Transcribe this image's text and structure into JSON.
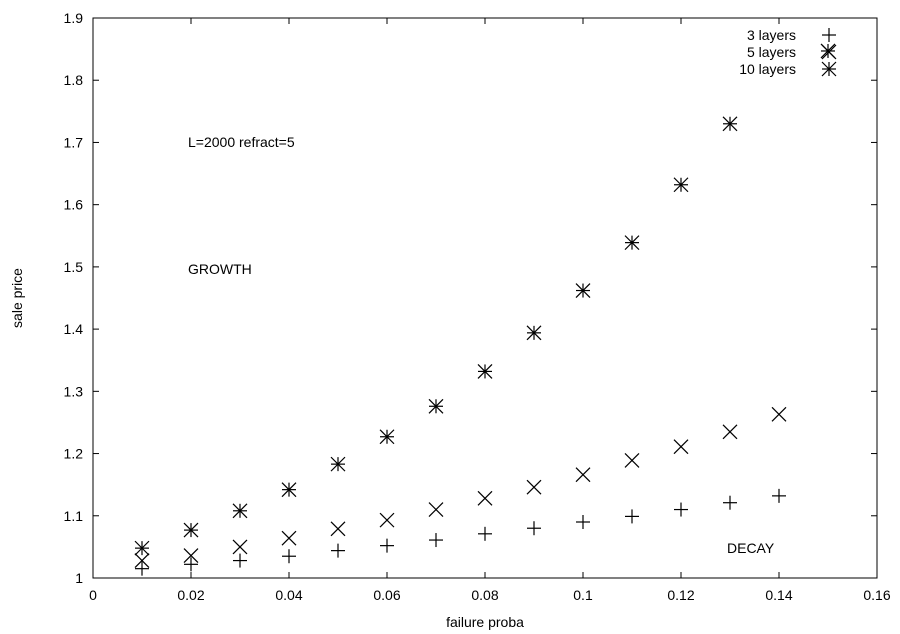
{
  "chart_data": {
    "type": "scatter",
    "xlabel": "failure proba",
    "ylabel": "sale price",
    "xlim": [
      0,
      0.16
    ],
    "ylim": [
      1,
      1.9
    ],
    "xticks": [
      "0",
      "0.02",
      "0.04",
      "0.06",
      "0.08",
      "0.1",
      "0.12",
      "0.14",
      "0.16"
    ],
    "yticks": [
      "1",
      "1.1",
      "1.2",
      "1.3",
      "1.4",
      "1.5",
      "1.6",
      "1.7",
      "1.8",
      "1.9"
    ],
    "grid": false,
    "legend_position": "top-right",
    "series": [
      {
        "name": "3 layers",
        "marker": "plus",
        "points": [
          [
            0.01,
            1.015
          ],
          [
            0.02,
            1.022
          ],
          [
            0.03,
            1.028
          ],
          [
            0.04,
            1.035
          ],
          [
            0.05,
            1.044
          ],
          [
            0.06,
            1.052
          ],
          [
            0.07,
            1.061
          ],
          [
            0.08,
            1.071
          ],
          [
            0.09,
            1.08
          ],
          [
            0.1,
            1.09
          ],
          [
            0.11,
            1.099
          ],
          [
            0.12,
            1.11
          ],
          [
            0.13,
            1.121
          ],
          [
            0.14,
            1.132
          ]
        ]
      },
      {
        "name": "5 layers",
        "marker": "cross",
        "points": [
          [
            0.01,
            1.028
          ],
          [
            0.02,
            1.036
          ],
          [
            0.03,
            1.05
          ],
          [
            0.04,
            1.064
          ],
          [
            0.05,
            1.079
          ],
          [
            0.06,
            1.093
          ],
          [
            0.07,
            1.11
          ],
          [
            0.08,
            1.128
          ],
          [
            0.09,
            1.146
          ],
          [
            0.1,
            1.166
          ],
          [
            0.11,
            1.189
          ],
          [
            0.12,
            1.211
          ],
          [
            0.13,
            1.235
          ],
          [
            0.14,
            1.263
          ]
        ]
      },
      {
        "name": "10 layers",
        "marker": "star",
        "points": [
          [
            0.01,
            1.048
          ],
          [
            0.02,
            1.077
          ],
          [
            0.03,
            1.108
          ],
          [
            0.04,
            1.142
          ],
          [
            0.05,
            1.183
          ],
          [
            0.06,
            1.227
          ],
          [
            0.07,
            1.276
          ],
          [
            0.08,
            1.332
          ],
          [
            0.09,
            1.394
          ],
          [
            0.1,
            1.462
          ],
          [
            0.11,
            1.539
          ],
          [
            0.12,
            1.632
          ],
          [
            0.13,
            1.73
          ],
          [
            0.15,
            1.847
          ]
        ]
      }
    ],
    "annotations": [
      "L=2000 refract=5",
      "GROWTH",
      "DECAY"
    ]
  }
}
